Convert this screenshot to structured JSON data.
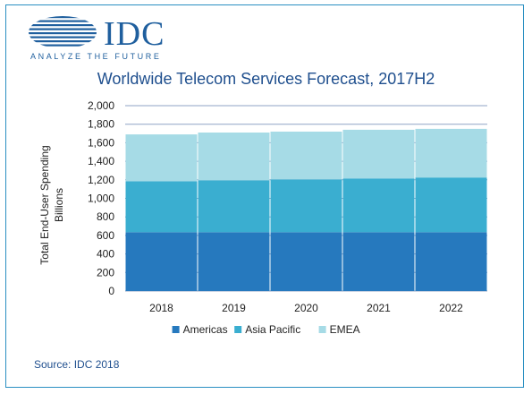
{
  "logo": {
    "word": "IDC",
    "tagline": "ANALYZE THE FUTURE"
  },
  "source": "Source: IDC 2018",
  "colors": {
    "americas": "#2679be",
    "asia_pacific": "#3aaed0",
    "emea": "#a6dbe6",
    "grid": "#8fa3c6",
    "text": "#222222",
    "title": "#1f4f8e"
  },
  "chart_data": {
    "type": "bar",
    "stacked": true,
    "title": "Worldwide Telecom Services Forecast, 2017H2",
    "ylabel": "Total End-User Spending",
    "ylabel2": "Billions",
    "xlabel": "",
    "categories": [
      "2018",
      "2019",
      "2020",
      "2021",
      "2022"
    ],
    "ylim": [
      0,
      2000
    ],
    "yticks": [
      0,
      200,
      400,
      600,
      800,
      1000,
      1200,
      1400,
      1600,
      1800,
      2000
    ],
    "ytick_labels": [
      "0",
      "200",
      "400",
      "600",
      "800",
      "1,000",
      "1,200",
      "1,400",
      "1,600",
      "1,800",
      "2,000"
    ],
    "grid": true,
    "legend_position": "bottom",
    "series": [
      {
        "name": "Americas",
        "values": [
          635,
          635,
          635,
          635,
          635
        ]
      },
      {
        "name": "Asia Pacific",
        "values": [
          550,
          560,
          570,
          580,
          590
        ]
      },
      {
        "name": "EMEA",
        "values": [
          505,
          515,
          515,
          525,
          525
        ]
      }
    ]
  }
}
